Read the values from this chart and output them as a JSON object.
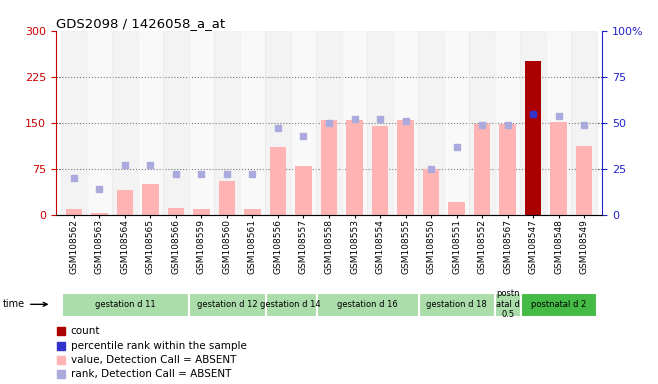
{
  "title": "GDS2098 / 1426058_a_at",
  "samples": [
    "GSM108562",
    "GSM108563",
    "GSM108564",
    "GSM108565",
    "GSM108566",
    "GSM108559",
    "GSM108560",
    "GSM108561",
    "GSM108556",
    "GSM108557",
    "GSM108558",
    "GSM108553",
    "GSM108554",
    "GSM108555",
    "GSM108550",
    "GSM108551",
    "GSM108552",
    "GSM108567",
    "GSM108547",
    "GSM108548",
    "GSM108549"
  ],
  "values": [
    10,
    4,
    40,
    50,
    12,
    10,
    55,
    10,
    110,
    80,
    155,
    155,
    145,
    155,
    75,
    22,
    148,
    148,
    250,
    152,
    112
  ],
  "ranks": [
    20,
    14,
    27,
    27,
    22,
    22,
    22,
    22,
    47,
    43,
    50,
    52,
    52,
    51,
    25,
    37,
    49,
    49,
    55,
    54,
    49
  ],
  "is_special": [
    false,
    false,
    false,
    false,
    false,
    false,
    false,
    false,
    false,
    false,
    false,
    false,
    false,
    false,
    false,
    false,
    false,
    false,
    true,
    false,
    false
  ],
  "groups": [
    {
      "label": "gestation d 11",
      "start": 0,
      "end": 4
    },
    {
      "label": "gestation d 12",
      "start": 5,
      "end": 7
    },
    {
      "label": "gestation d 14",
      "start": 8,
      "end": 9
    },
    {
      "label": "gestation d 16",
      "start": 10,
      "end": 13
    },
    {
      "label": "gestation d 18",
      "start": 14,
      "end": 16
    },
    {
      "label": "postn\natal d\n0.5",
      "start": 17,
      "end": 17
    },
    {
      "label": "postnatal d 2",
      "start": 18,
      "end": 20
    }
  ],
  "group_bg": [
    "#CCEECC",
    "#DDEECC",
    "#CCEECC",
    "#CCEECC",
    "#CCEECC",
    "#CCEECC",
    "#44CC44"
  ],
  "ylim_left": [
    0,
    300
  ],
  "ylim_right": [
    0,
    100
  ],
  "yticks_left": [
    0,
    75,
    150,
    225,
    300
  ],
  "yticks_right": [
    0,
    25,
    50,
    75,
    100
  ],
  "bar_color_normal": "#FFB3B3",
  "bar_color_special": "#AA0000",
  "rank_color_normal": "#AAAADD",
  "rank_color_special": "#3333CC",
  "title_color": "#000000",
  "left_axis_color": "#CC0000",
  "right_axis_color": "#2222CC",
  "bg_color": "#FFFFFF",
  "legend_items": [
    {
      "label": "count",
      "color": "#AA0000"
    },
    {
      "label": "percentile rank within the sample",
      "color": "#3333CC"
    },
    {
      "label": "value, Detection Call = ABSENT",
      "color": "#FFB3B3"
    },
    {
      "label": "rank, Detection Call = ABSENT",
      "color": "#AAAADD"
    }
  ]
}
